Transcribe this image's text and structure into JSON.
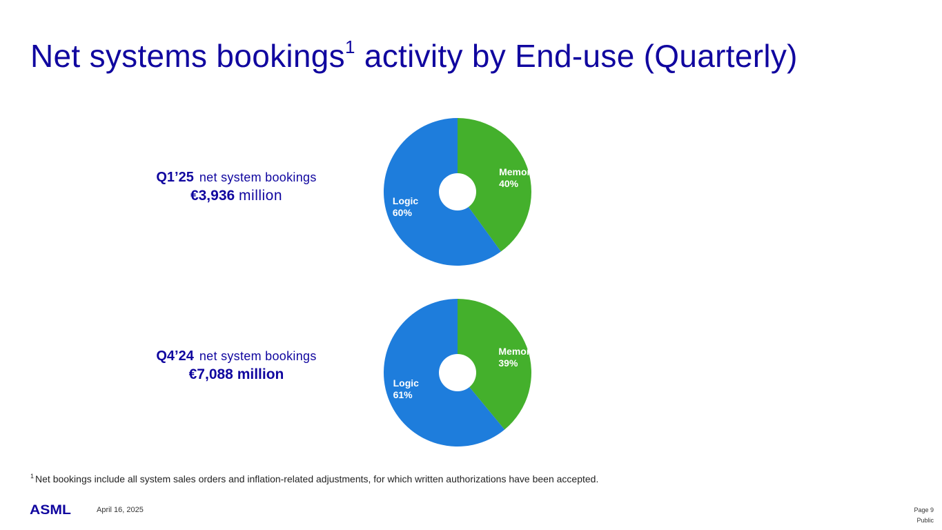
{
  "title": {
    "main": "Net systems bookings",
    "superscript": "1",
    "rest": " activity by End-use (Quarterly)"
  },
  "colors": {
    "brand": "#10069f",
    "logic": "#1e7ddc",
    "memory": "#44b02c"
  },
  "bookings": [
    {
      "quarter": "Q1’25",
      "label": "net system bookings",
      "amount": "€3,936",
      "unit": "million"
    },
    {
      "quarter": "Q4’24",
      "label": "net system bookings",
      "amount": "€7,088",
      "unit": "million"
    }
  ],
  "chart_data": [
    {
      "type": "pie",
      "title": "",
      "slices": [
        {
          "label": "Memory",
          "value": 40,
          "value_label": "40%",
          "color": "#44b02c"
        },
        {
          "label": "Logic",
          "value": 60,
          "value_label": "60%",
          "color": "#1e7ddc"
        }
      ]
    },
    {
      "type": "pie",
      "title": "",
      "slices": [
        {
          "label": "Memory",
          "value": 39,
          "value_label": "39%",
          "color": "#44b02c"
        },
        {
          "label": "Logic",
          "value": 61,
          "value_label": "61%",
          "color": "#1e7ddc"
        }
      ]
    }
  ],
  "footnote": {
    "marker": "1",
    "text": "Net bookings include all system sales orders and inflation-related adjustments, for which written authorizations have been accepted."
  },
  "footer": {
    "logo": "ASML",
    "date": "April 16, 2025",
    "page": "Page 9",
    "classification": "Public"
  }
}
